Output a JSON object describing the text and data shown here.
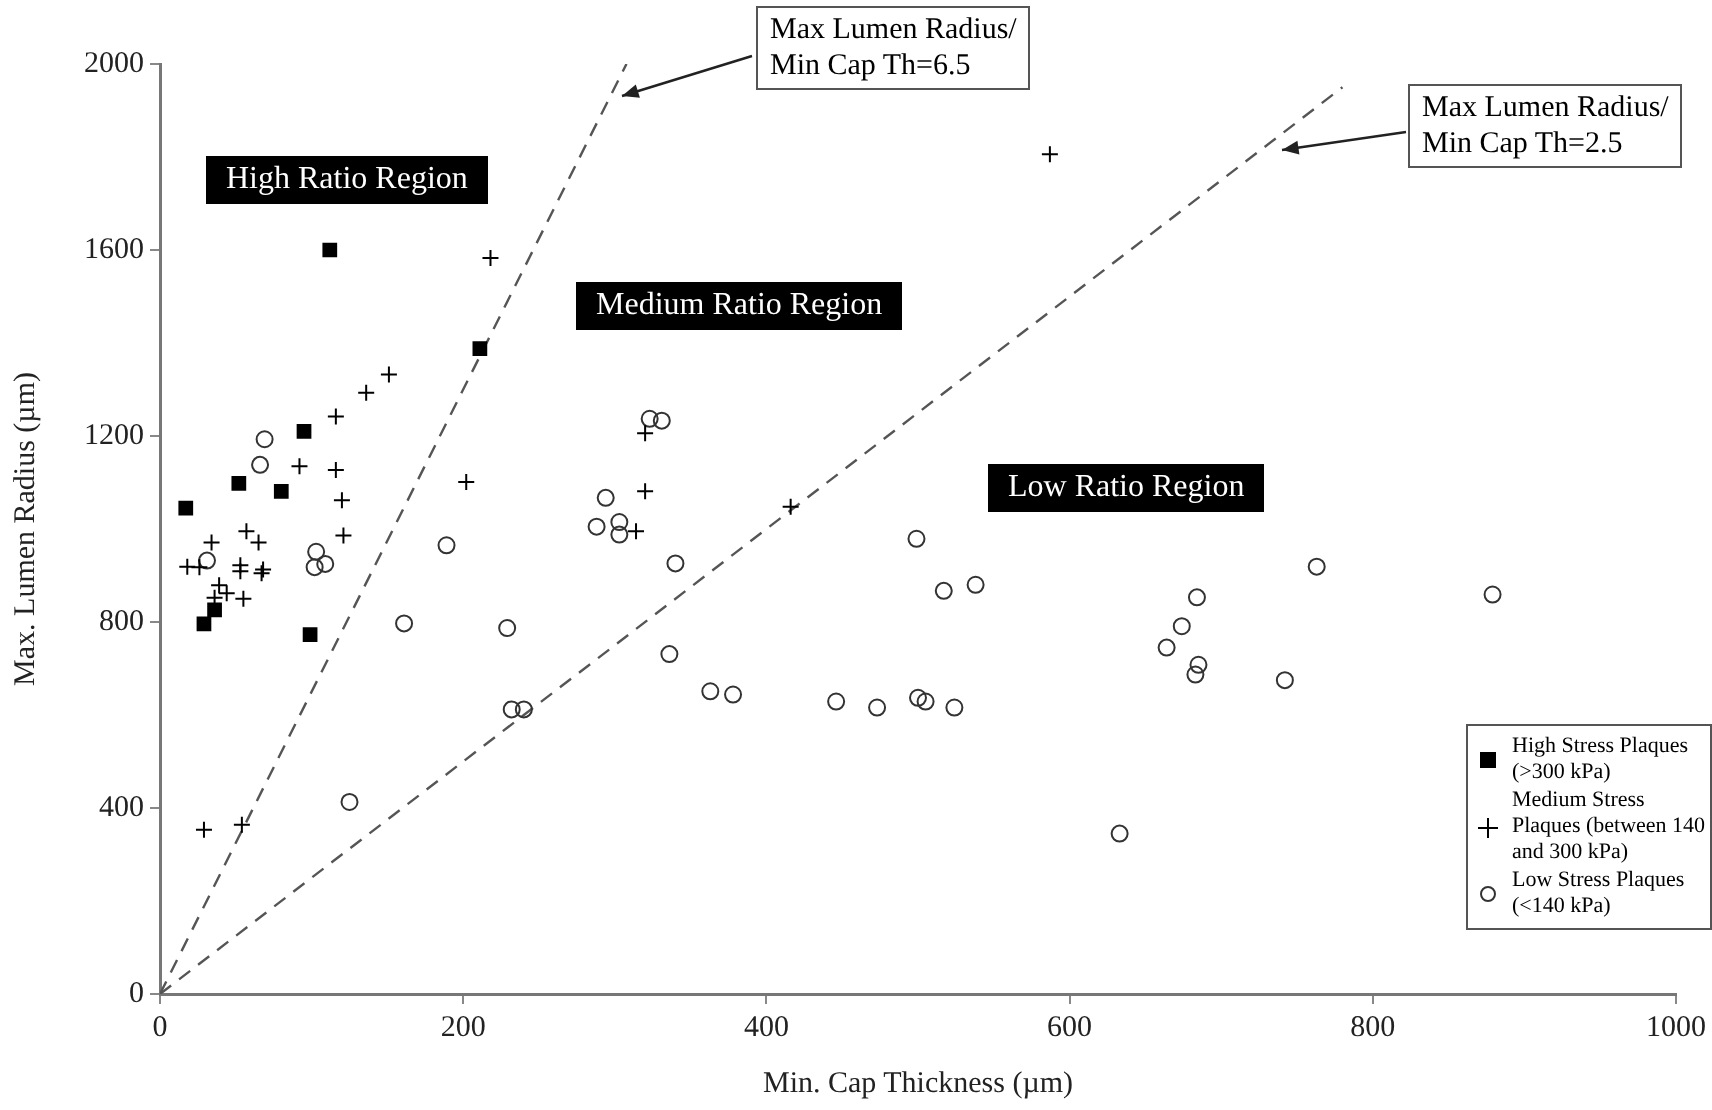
{
  "chart_data": {
    "type": "scatter",
    "xlabel": "Min. Cap Thickness (µm)",
    "ylabel": "Max. Lumen Radius (µm)",
    "xlim": [
      0,
      1000
    ],
    "xticks": [
      0,
      200,
      400,
      600,
      800,
      1000
    ],
    "ylim": [
      0,
      2000
    ],
    "yticks": [
      0,
      400,
      800,
      1200,
      1600,
      2000
    ],
    "grid": false,
    "legend": "bottom right",
    "annotations": [
      "High Ratio Region",
      "Medium Ratio Region",
      "Low Ratio Region",
      "Max Lumen Radius/\nMin Cap Th=6.5",
      "Max Lumen Radius/\nMin Cap Th=2.5"
    ],
    "series": [
      {
        "name": "High Stress Plaques (>300 kPa)",
        "marker": "square",
        "color": "#000000",
        "x": [
          112,
          211,
          95,
          52,
          80,
          17,
          36,
          29,
          99
        ],
        "values": [
          1600,
          1388,
          1210,
          1098,
          1081,
          1045,
          826,
          796,
          773
        ]
      },
      {
        "name": "Medium Stress Plaques (between 140 and 300 kPa)",
        "marker": "cross",
        "color": "#000000",
        "x": [
          218,
          151,
          136,
          116,
          92,
          116,
          120,
          121,
          202,
          57,
          34,
          65,
          18,
          26,
          53,
          53,
          68,
          67,
          39,
          44,
          36,
          55,
          29,
          54,
          320,
          320,
          314,
          416,
          587
        ],
        "values": [
          1583,
          1332,
          1293,
          1242,
          1135,
          1127,
          1062,
          986,
          1101,
          995,
          971,
          971,
          919,
          918,
          922,
          909,
          913,
          905,
          879,
          862,
          852,
          850,
          353,
          364,
          1206,
          1081,
          995,
          1048,
          1806
        ]
      },
      {
        "name": "Low Stress Plaques (<140 kPa)",
        "marker": "circle",
        "color": "#333333",
        "x": [
          69,
          66,
          31,
          103,
          102,
          109,
          189,
          161,
          229,
          125,
          232,
          240,
          323,
          331,
          294,
          288,
          303,
          303,
          340,
          336,
          363,
          378,
          446,
          473,
          499,
          517,
          500,
          505,
          524,
          538,
          763,
          879,
          684,
          674,
          664,
          685,
          683,
          742,
          633
        ],
        "values": [
          1193,
          1138,
          932,
          951,
          918,
          925,
          965,
          797,
          787,
          413,
          612,
          612,
          1237,
          1233,
          1067,
          1005,
          1015,
          988,
          926,
          731,
          651,
          644,
          629,
          616,
          979,
          867,
          637,
          629,
          616,
          880,
          919,
          859,
          853,
          791,
          745,
          708,
          687,
          675,
          345
        ]
      },
      {
        "type": "line",
        "marker": "none",
        "line_style": "dashed",
        "color": "#555555",
        "x": [
          0,
          307.7
        ],
        "values": [
          0,
          2000
        ]
      },
      {
        "type": "line",
        "marker": "none",
        "line_style": "dashed",
        "color": "#555555",
        "x": [
          0,
          780
        ],
        "values": [
          0,
          1950
        ]
      }
    ]
  }
}
